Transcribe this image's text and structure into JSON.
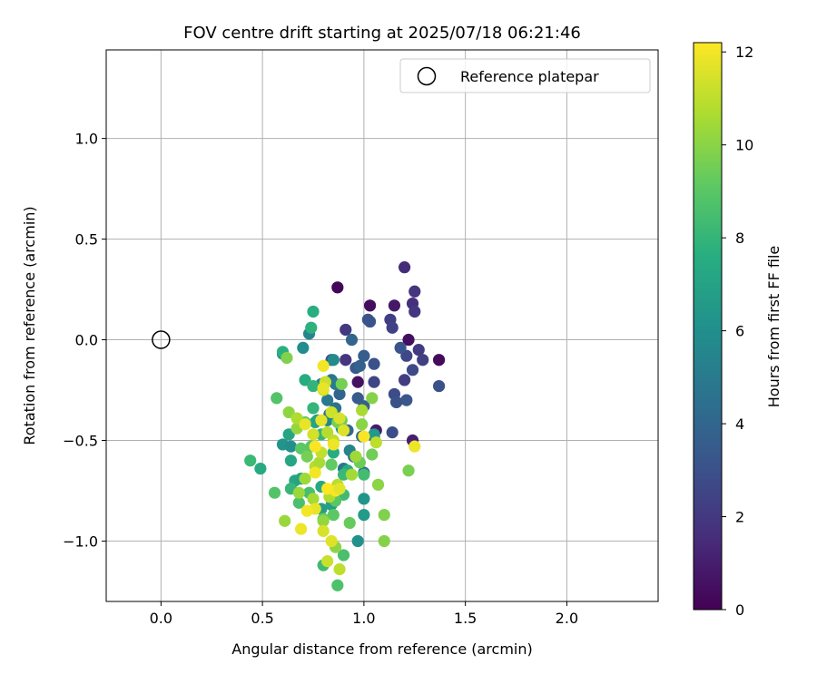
{
  "chart_data": {
    "type": "scatter",
    "title": "FOV centre drift starting at 2025/07/18 06:21:46",
    "xlabel": "Angular distance from reference (arcmin)",
    "ylabel": "Rotation from reference (arcmin)",
    "xlim": [
      -0.27,
      2.45
    ],
    "ylim": [
      -1.3,
      1.44
    ],
    "xticks": [
      0.0,
      0.5,
      1.0,
      1.5,
      2.0
    ],
    "xtick_labels": [
      "0.0",
      "0.5",
      "1.0",
      "1.5",
      "2.0"
    ],
    "yticks": [
      -1.0,
      -0.5,
      0.0,
      0.5,
      1.0
    ],
    "ytick_labels": [
      "−1.0",
      "−0.5",
      "0.0",
      "0.5",
      "1.0"
    ],
    "grid": true,
    "legend": {
      "position": "top-right",
      "label": "Reference platepar"
    },
    "reference_point": {
      "x": 0.0,
      "y": 0.0
    },
    "colorbar": {
      "label": "Hours from first FF file",
      "range": [
        0,
        12.2
      ],
      "ticks": [
        0,
        2,
        4,
        6,
        8,
        10,
        12
      ],
      "tick_labels": [
        "0",
        "2",
        "4",
        "6",
        "8",
        "10",
        "12"
      ],
      "colormap": "viridis"
    },
    "series": [
      {
        "points": [
          [
            0.87,
            0.26,
            0.2
          ],
          [
            1.03,
            0.17,
            0.4
          ],
          [
            1.15,
            0.17,
            0.8
          ],
          [
            1.22,
            0.0,
            0.5
          ],
          [
            1.37,
            -0.1,
            0.3
          ],
          [
            0.97,
            -0.21,
            0.6
          ],
          [
            1.06,
            -0.45,
            0.9
          ],
          [
            1.24,
            -0.5,
            1.0
          ],
          [
            1.2,
            0.36,
            1.5
          ],
          [
            1.25,
            0.24,
            1.8
          ],
          [
            1.24,
            0.18,
            1.6
          ],
          [
            1.25,
            0.14,
            1.9
          ],
          [
            1.13,
            0.1,
            2.2
          ],
          [
            1.14,
            0.06,
            2.4
          ],
          [
            1.27,
            -0.05,
            2.1
          ],
          [
            1.21,
            -0.08,
            2.6
          ],
          [
            1.29,
            -0.1,
            2.3
          ],
          [
            1.24,
            -0.15,
            2.7
          ],
          [
            1.2,
            -0.2,
            2.2
          ],
          [
            1.37,
            -0.23,
            3.0
          ],
          [
            0.91,
            0.05,
            2.0
          ],
          [
            0.91,
            -0.1,
            1.8
          ],
          [
            1.05,
            -0.21,
            2.5
          ],
          [
            1.15,
            -0.27,
            2.8
          ],
          [
            1.16,
            -0.31,
            3.1
          ],
          [
            1.21,
            -0.3,
            3.3
          ],
          [
            1.14,
            -0.46,
            2.9
          ],
          [
            1.05,
            -0.48,
            2.6
          ],
          [
            0.96,
            -0.14,
            3.4
          ],
          [
            1.0,
            -0.08,
            3.6
          ],
          [
            1.05,
            -0.12,
            3.0
          ],
          [
            1.03,
            0.09,
            3.2
          ],
          [
            1.02,
            0.1,
            3.1
          ],
          [
            0.94,
            0.0,
            4.0
          ],
          [
            0.98,
            -0.13,
            3.8
          ],
          [
            0.97,
            -0.29,
            3.5
          ],
          [
            1.0,
            -0.33,
            3.7
          ],
          [
            0.92,
            -0.45,
            4.2
          ],
          [
            0.99,
            -0.48,
            4.4
          ],
          [
            0.88,
            -0.27,
            3.9
          ],
          [
            0.86,
            -0.34,
            4.6
          ],
          [
            0.83,
            -0.37,
            4.1
          ],
          [
            0.95,
            -0.58,
            4.5
          ],
          [
            0.9,
            -0.64,
            4.8
          ],
          [
            1.0,
            -0.66,
            4.3
          ],
          [
            1.16,
            -0.31,
            3.0
          ],
          [
            1.18,
            -0.04,
            3.2
          ],
          [
            0.84,
            -0.1,
            3.3
          ],
          [
            0.84,
            -0.2,
            4.7
          ],
          [
            0.82,
            -0.3,
            4.9
          ],
          [
            0.86,
            -0.22,
            5.0
          ],
          [
            0.79,
            -0.22,
            5.2
          ],
          [
            0.93,
            -0.55,
            5.4
          ],
          [
            0.82,
            -0.4,
            5.5
          ],
          [
            0.85,
            -0.1,
            5.8
          ],
          [
            0.73,
            0.03,
            5.6
          ],
          [
            0.7,
            -0.04,
            5.9
          ],
          [
            0.6,
            -0.07,
            6.1
          ],
          [
            0.6,
            -0.52,
            6.3
          ],
          [
            0.64,
            -0.53,
            6.0
          ],
          [
            0.77,
            -0.4,
            6.4
          ],
          [
            0.89,
            -0.44,
            6.2
          ],
          [
            1.05,
            -0.47,
            6.5
          ],
          [
            1.0,
            -0.79,
            6.3
          ],
          [
            1.0,
            -0.87,
            6.6
          ],
          [
            0.97,
            -1.0,
            6.1
          ],
          [
            0.79,
            -0.84,
            6.7
          ],
          [
            0.84,
            -0.82,
            6.8
          ],
          [
            0.76,
            -0.41,
            7.0
          ],
          [
            0.63,
            -0.47,
            7.1
          ],
          [
            0.66,
            -0.7,
            7.2
          ],
          [
            0.69,
            -0.69,
            7.0
          ],
          [
            0.79,
            -0.73,
            7.3
          ],
          [
            0.92,
            -0.65,
            7.4
          ],
          [
            0.85,
            -0.56,
            7.5
          ],
          [
            0.64,
            -0.6,
            7.2
          ],
          [
            0.49,
            -0.64,
            7.4
          ],
          [
            0.75,
            0.14,
            7.6
          ],
          [
            0.74,
            0.06,
            7.8
          ],
          [
            0.6,
            -0.06,
            7.7
          ],
          [
            0.71,
            -0.2,
            7.5
          ],
          [
            0.75,
            -0.23,
            7.9
          ],
          [
            0.75,
            -0.34,
            8.0
          ],
          [
            0.79,
            -0.47,
            8.1
          ],
          [
            0.9,
            -0.67,
            8.2
          ],
          [
            1.0,
            -0.67,
            8.4
          ],
          [
            0.9,
            -0.77,
            8.3
          ],
          [
            0.73,
            -0.76,
            8.5
          ],
          [
            0.68,
            -0.81,
            8.6
          ],
          [
            0.64,
            -0.74,
            8.1
          ],
          [
            0.44,
            -0.6,
            8.2
          ],
          [
            0.8,
            -1.12,
            8.3
          ],
          [
            0.87,
            -1.22,
            8.7
          ],
          [
            0.9,
            -1.07,
            8.6
          ],
          [
            0.57,
            -0.29,
            8.8
          ],
          [
            0.56,
            -0.76,
            8.8
          ],
          [
            0.86,
            -0.8,
            9.0
          ],
          [
            0.85,
            -0.87,
            9.1
          ],
          [
            0.8,
            -0.89,
            9.2
          ],
          [
            0.93,
            -0.91,
            9.3
          ],
          [
            0.74,
            -0.53,
            9.0
          ],
          [
            0.84,
            -0.62,
            9.2
          ],
          [
            0.98,
            -0.61,
            9.4
          ],
          [
            1.04,
            -0.57,
            9.5
          ],
          [
            0.69,
            -0.54,
            9.1
          ],
          [
            0.71,
            -0.41,
            9.3
          ],
          [
            0.72,
            -0.58,
            9.6
          ],
          [
            0.87,
            -0.41,
            9.7
          ],
          [
            0.89,
            -0.4,
            9.4
          ],
          [
            0.62,
            -0.09,
            9.8
          ],
          [
            0.89,
            -0.22,
            9.6
          ],
          [
            1.04,
            -0.29,
            9.9
          ],
          [
            1.22,
            -0.65,
            9.7
          ],
          [
            1.1,
            -0.87,
            9.8
          ],
          [
            1.1,
            -1.0,
            9.9
          ],
          [
            1.07,
            -0.72,
            10.0
          ],
          [
            0.86,
            -1.03,
            10.1
          ],
          [
            0.8,
            -0.9,
            10.2
          ],
          [
            0.61,
            -0.9,
            10.3
          ],
          [
            0.63,
            -0.36,
            10.1
          ],
          [
            0.67,
            -0.44,
            10.2
          ],
          [
            0.71,
            -0.69,
            10.4
          ],
          [
            0.68,
            -0.76,
            10.3
          ],
          [
            0.75,
            -0.79,
            10.5
          ],
          [
            0.99,
            -0.42,
            10.0
          ],
          [
            0.99,
            -0.35,
            10.6
          ],
          [
            0.96,
            -0.58,
            10.4
          ],
          [
            0.94,
            -0.67,
            10.5
          ],
          [
            0.67,
            -0.39,
            10.7
          ],
          [
            0.76,
            -0.63,
            10.8
          ],
          [
            0.83,
            -0.78,
            10.7
          ],
          [
            0.87,
            -0.72,
            10.9
          ],
          [
            0.78,
            -0.61,
            10.6
          ],
          [
            0.82,
            -0.46,
            10.8
          ],
          [
            0.85,
            -0.5,
            11.0
          ],
          [
            0.79,
            -0.56,
            11.1
          ],
          [
            1.06,
            -0.51,
            11.0
          ],
          [
            0.81,
            -0.21,
            11.2
          ],
          [
            0.8,
            -0.25,
            11.4
          ],
          [
            0.84,
            -0.36,
            11.3
          ],
          [
            0.88,
            -0.39,
            11.5
          ],
          [
            0.9,
            -0.45,
            11.6
          ],
          [
            0.75,
            -0.47,
            11.4
          ],
          [
            0.79,
            -0.4,
            11.7
          ],
          [
            0.71,
            -0.42,
            11.8
          ],
          [
            0.88,
            -1.14,
            11.0
          ],
          [
            0.82,
            -1.1,
            11.2
          ],
          [
            0.84,
            -1.0,
            11.6
          ],
          [
            0.69,
            -0.94,
            11.9
          ],
          [
            0.8,
            -0.95,
            11.5
          ],
          [
            0.76,
            -0.84,
            11.8
          ],
          [
            0.72,
            -0.85,
            12.0
          ],
          [
            0.76,
            -0.53,
            12.1
          ],
          [
            0.76,
            -0.66,
            12.0
          ],
          [
            0.85,
            -0.52,
            11.9
          ],
          [
            0.82,
            -0.74,
            12.2
          ],
          [
            0.86,
            -0.75,
            12.1
          ],
          [
            0.88,
            -0.74,
            11.7
          ],
          [
            1.0,
            -0.48,
            12.1
          ],
          [
            1.25,
            -0.53,
            11.9
          ],
          [
            0.8,
            -0.13,
            12.0
          ],
          [
            0.8,
            -0.24,
            11.8
          ]
        ]
      }
    ]
  }
}
